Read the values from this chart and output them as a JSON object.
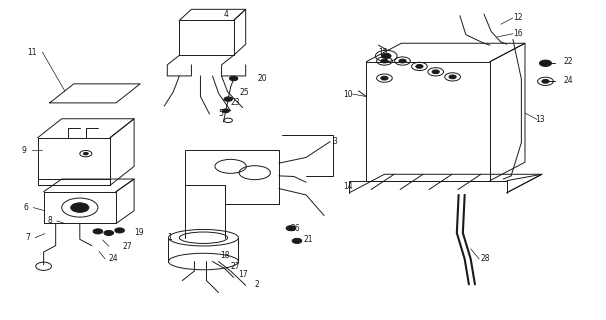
{
  "bg_color": "#ffffff",
  "line_color": "#1a1a1a",
  "fig_width": 6.06,
  "fig_height": 3.2,
  "dpi": 100
}
